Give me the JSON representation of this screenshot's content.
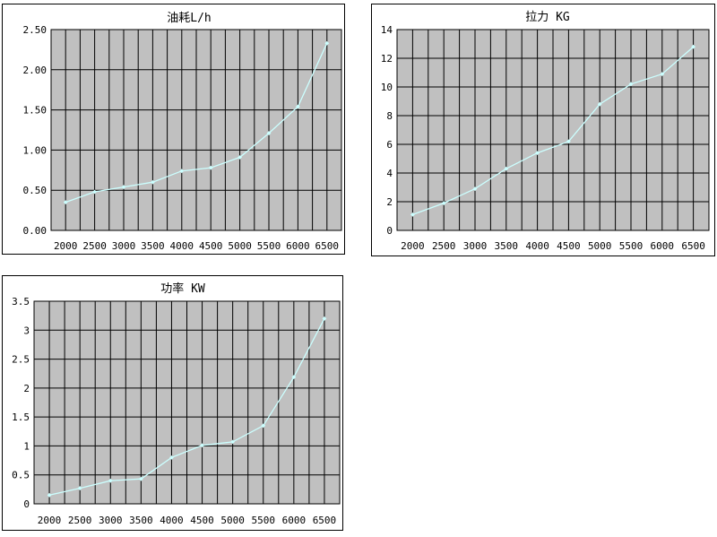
{
  "chart_data": [
    {
      "type": "line",
      "title": "油耗L/h",
      "x": [
        "2000",
        "2500",
        "3000",
        "3500",
        "4000",
        "4500",
        "5000",
        "5500",
        "6000",
        "6500"
      ],
      "values": [
        0.35,
        0.48,
        0.54,
        0.6,
        0.74,
        0.78,
        0.91,
        1.21,
        1.54,
        2.33
      ],
      "ylim": [
        0,
        2.5
      ],
      "yticks": [
        "0.00",
        "0.50",
        "1.00",
        "1.50",
        "2.00",
        "2.50"
      ],
      "grid": true,
      "colors": {
        "plot_bg": "#c0c0c0",
        "line": "#ccffff",
        "grid": "#000000"
      }
    },
    {
      "type": "line",
      "title": "拉力 KG",
      "x": [
        "2000",
        "2500",
        "3000",
        "3500",
        "4000",
        "4500",
        "5000",
        "5500",
        "6000",
        "6500"
      ],
      "values": [
        1.1,
        1.9,
        2.9,
        4.3,
        5.4,
        6.2,
        8.8,
        10.2,
        10.9,
        12.8
      ],
      "ylim": [
        0,
        14
      ],
      "yticks": [
        "0",
        "2",
        "4",
        "6",
        "8",
        "10",
        "12",
        "14"
      ],
      "grid": true,
      "colors": {
        "plot_bg": "#c0c0c0",
        "line": "#ccffff",
        "grid": "#000000"
      }
    },
    {
      "type": "line",
      "title": "功率 KW",
      "x": [
        "2000",
        "2500",
        "3000",
        "3500",
        "4000",
        "4500",
        "5000",
        "5500",
        "6000",
        "6500"
      ],
      "values": [
        0.15,
        0.27,
        0.4,
        0.43,
        0.8,
        1.01,
        1.07,
        1.35,
        2.19,
        3.2
      ],
      "ylim": [
        0,
        3.5
      ],
      "yticks": [
        "0",
        "0.5",
        "1",
        "1.5",
        "2",
        "2.5",
        "3",
        "3.5"
      ],
      "grid": true,
      "colors": {
        "plot_bg": "#c0c0c0",
        "line": "#ccffff",
        "grid": "#000000"
      }
    }
  ]
}
